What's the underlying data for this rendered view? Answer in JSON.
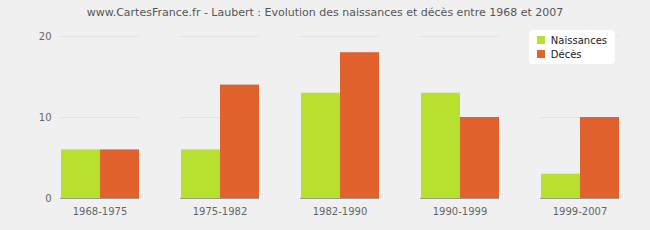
{
  "chart_data": {
    "type": "bar",
    "title": "www.CartesFrance.fr - Laubert : Evolution des naissances et décès entre 1968 et 2007",
    "categories": [
      "1968-1975",
      "1975-1982",
      "1982-1990",
      "1990-1999",
      "1999-2007"
    ],
    "series": [
      {
        "name": "Naissances",
        "color": "#b8e02e",
        "values": [
          6,
          6,
          13,
          13,
          3
        ]
      },
      {
        "name": "Décès",
        "color": "#e2622e",
        "values": [
          6,
          14,
          18,
          10,
          10
        ]
      }
    ],
    "ylim": [
      0,
      20
    ],
    "yticks": [
      0,
      10,
      20
    ],
    "grid": true,
    "legend": "top-right"
  }
}
